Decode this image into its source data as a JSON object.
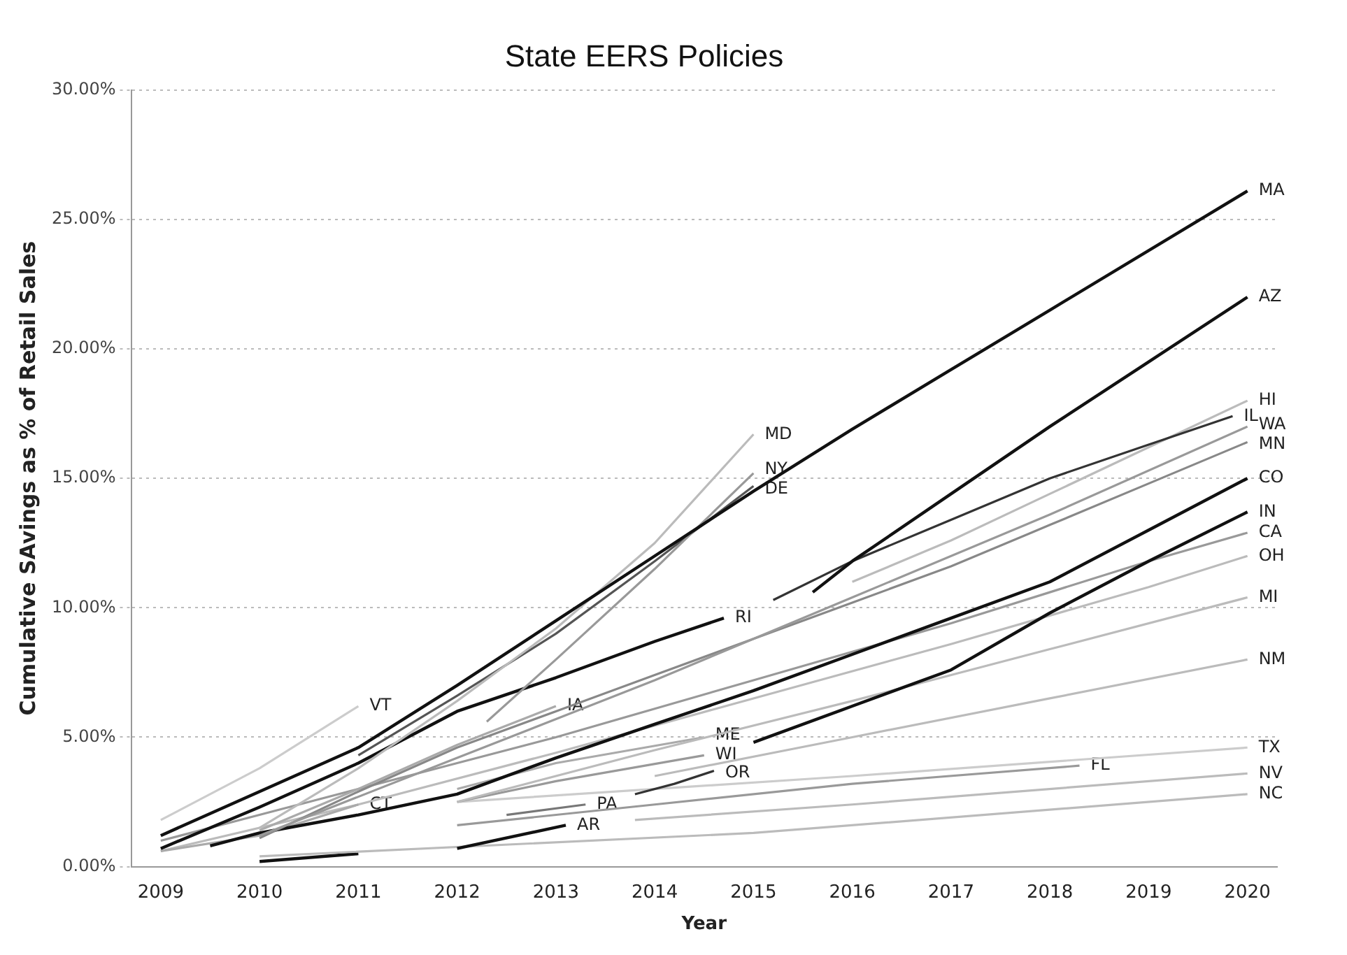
{
  "chart_data": {
    "type": "line",
    "title": "State EERS Policies",
    "xlabel": "Year",
    "ylabel": "Cumulative SAvings as % of Retail Sales",
    "xlim": [
      2008.7,
      2020.3
    ],
    "xticks": [
      2009,
      2010,
      2011,
      2012,
      2013,
      2014,
      2015,
      2016,
      2017,
      2018,
      2019,
      2020
    ],
    "ylim": [
      0,
      30
    ],
    "yticks": [
      {
        "value": 0,
        "label": "0.00%"
      },
      {
        "value": 5,
        "label": "5.00%"
      },
      {
        "value": 10,
        "label": "10.00%"
      },
      {
        "value": 15,
        "label": "15.00%"
      },
      {
        "value": 20,
        "label": "20.00%"
      },
      {
        "value": 25,
        "label": "25.00%"
      },
      {
        "value": 30,
        "label": "30.00%"
      }
    ],
    "grid": "y",
    "legend": false,
    "marker": "none",
    "line_style": "solid",
    "series": [
      {
        "name": "MA",
        "color": "#111111",
        "x": [
          2009,
          2010,
          2011,
          2012,
          2013,
          2014,
          2015,
          2016,
          2017,
          2018,
          2019,
          2020
        ],
        "values": [
          1.2,
          2.9,
          4.6,
          7.0,
          9.5,
          12.0,
          14.5,
          16.9,
          19.2,
          21.5,
          23.8,
          26.1
        ]
      },
      {
        "name": "AZ",
        "color": "#111111",
        "x": [
          2015.6,
          2016,
          2017,
          2018,
          2019,
          2020
        ],
        "values": [
          10.6,
          11.8,
          14.4,
          17.0,
          19.5,
          22.0
        ]
      },
      {
        "name": "MD",
        "color": "#bbbbbb",
        "x": [
          2010,
          2011,
          2012,
          2013,
          2014,
          2015
        ],
        "values": [
          1.5,
          3.8,
          6.4,
          9.2,
          12.5,
          16.7
        ]
      },
      {
        "name": "NY",
        "color": "#999999",
        "x": [
          2012.3,
          2013,
          2014,
          2015
        ],
        "values": [
          5.6,
          8.0,
          11.5,
          15.2
        ]
      },
      {
        "name": "DE",
        "color": "#555555",
        "x": [
          2011,
          2012,
          2013,
          2014,
          2015
        ],
        "values": [
          4.3,
          6.6,
          9.0,
          11.8,
          14.7
        ]
      },
      {
        "name": "VT",
        "color": "#cccccc",
        "x": [
          2009,
          2010,
          2011
        ],
        "values": [
          1.8,
          3.8,
          6.2
        ]
      },
      {
        "name": "RI",
        "color": "#111111",
        "x": [
          2009,
          2010,
          2011,
          2012,
          2013,
          2014,
          2014.7
        ],
        "values": [
          0.7,
          2.3,
          4.0,
          6.0,
          7.3,
          8.7,
          9.6
        ]
      },
      {
        "name": "IL",
        "color": "#333333",
        "x": [
          2015.2,
          2016,
          2017,
          2018,
          2019,
          2019.85
        ],
        "values": [
          10.3,
          11.8,
          13.4,
          15.0,
          16.3,
          17.4
        ]
      },
      {
        "name": "HI",
        "color": "#bbbbbb",
        "x": [
          2016,
          2017,
          2018,
          2019,
          2020
        ],
        "values": [
          11.0,
          12.6,
          14.4,
          16.2,
          18.0
        ]
      },
      {
        "name": "WA",
        "color": "#999999",
        "x": [
          2010,
          2012,
          2014,
          2016,
          2018,
          2020
        ],
        "values": [
          1.2,
          4.2,
          7.2,
          10.4,
          13.6,
          17.0
        ]
      },
      {
        "name": "MN",
        "color": "#888888",
        "x": [
          2010,
          2011,
          2012,
          2013,
          2014,
          2015,
          2016,
          2017,
          2018,
          2019,
          2020
        ],
        "values": [
          1.1,
          2.9,
          4.6,
          6.0,
          7.4,
          8.8,
          10.2,
          11.6,
          13.2,
          14.8,
          16.4
        ]
      },
      {
        "name": "IA",
        "color": "#aaaaaa",
        "x": [
          2010,
          2011,
          2012,
          2013
        ],
        "values": [
          1.4,
          3.0,
          4.7,
          6.2
        ]
      },
      {
        "name": "CO",
        "color": "#111111",
        "x": [
          2009.5,
          2010,
          2011,
          2012,
          2013,
          2014,
          2015,
          2016,
          2017,
          2018,
          2019,
          2020
        ],
        "values": [
          0.8,
          1.3,
          2.0,
          2.8,
          4.2,
          5.5,
          6.8,
          8.2,
          9.6,
          11.0,
          13.0,
          15.0
        ]
      },
      {
        "name": "CT",
        "color": "#aaaaaa",
        "x": [
          2009,
          2010,
          2011
        ],
        "values": [
          0.6,
          1.2,
          2.4
        ]
      },
      {
        "name": "IN",
        "color": "#111111",
        "x": [
          2015,
          2016,
          2017,
          2018,
          2019,
          2020
        ],
        "values": [
          4.8,
          6.2,
          7.6,
          9.8,
          11.8,
          13.7
        ]
      },
      {
        "name": "CA",
        "color": "#999999",
        "x": [
          2009,
          2010,
          2011,
          2012,
          2013,
          2014,
          2015,
          2016,
          2017,
          2018,
          2019,
          2020
        ],
        "values": [
          1.0,
          2.0,
          3.0,
          4.0,
          5.0,
          6.1,
          7.2,
          8.3,
          9.4,
          10.6,
          11.8,
          12.9
        ]
      },
      {
        "name": "OH",
        "color": "#bbbbbb",
        "x": [
          2009,
          2011,
          2013,
          2015,
          2017,
          2019,
          2020
        ],
        "values": [
          0.6,
          2.4,
          4.4,
          6.5,
          8.6,
          10.8,
          12.0
        ]
      },
      {
        "name": "MI",
        "color": "#bbbbbb",
        "x": [
          2012,
          2014,
          2016,
          2018,
          2020
        ],
        "values": [
          2.5,
          4.5,
          6.4,
          8.4,
          10.4
        ]
      },
      {
        "name": "NM",
        "color": "#bbbbbb",
        "x": [
          2014,
          2016,
          2018,
          2020
        ],
        "values": [
          3.5,
          5.0,
          6.5,
          8.0
        ]
      },
      {
        "name": "ME",
        "color": "#aaaaaa",
        "x": [
          2012,
          2013,
          2014.5
        ],
        "values": [
          3.0,
          4.0,
          5.0
        ]
      },
      {
        "name": "WI",
        "color": "#999999",
        "x": [
          2012,
          2013,
          2014.5
        ],
        "values": [
          2.5,
          3.3,
          4.3
        ]
      },
      {
        "name": "OR",
        "color": "#333333",
        "x": [
          2013.8,
          2014.2,
          2014.6
        ],
        "values": [
          2.8,
          3.2,
          3.7
        ]
      },
      {
        "name": "PA",
        "color": "#777777",
        "x": [
          2012.5,
          2013.3
        ],
        "values": [
          2.0,
          2.4
        ]
      },
      {
        "name": "AR",
        "color": "#111111",
        "x": [
          2012,
          2013.1
        ],
        "values": [
          0.7,
          1.6
        ]
      },
      {
        "name": "TX",
        "color": "#cccccc",
        "x": [
          2012,
          2016,
          2020
        ],
        "values": [
          2.5,
          3.5,
          4.6
        ]
      },
      {
        "name": "FL",
        "color": "#999999",
        "x": [
          2012,
          2014,
          2016,
          2018.3
        ],
        "values": [
          1.6,
          2.4,
          3.2,
          3.9
        ]
      },
      {
        "name": "NV",
        "color": "#bbbbbb",
        "x": [
          2013.8,
          2016,
          2020
        ],
        "values": [
          1.8,
          2.4,
          3.6
        ]
      },
      {
        "name": "NC",
        "color": "#bbbbbb",
        "x": [
          2010,
          2015,
          2020
        ],
        "values": [
          0.4,
          1.3,
          2.8
        ]
      },
      {
        "color": "#111111",
        "x": [
          2010,
          2011
        ],
        "values": [
          0.2,
          0.5
        ]
      }
    ]
  }
}
